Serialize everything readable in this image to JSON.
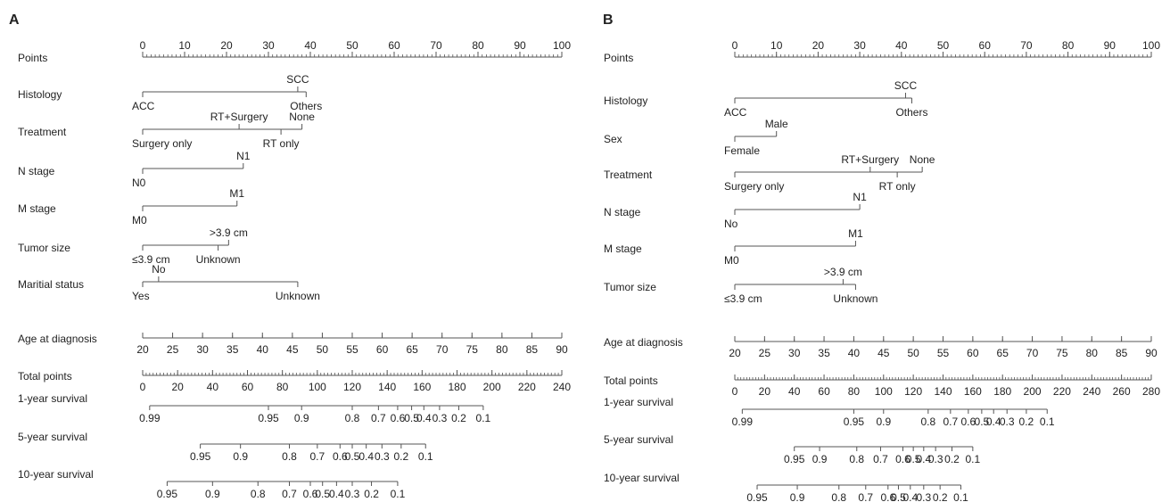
{
  "chart_data": [
    {
      "type": "nomogram",
      "panel": "A",
      "rows": [
        {
          "label": "Points",
          "kind": "axis",
          "min": 0,
          "max": 100,
          "ticks": [
            0,
            10,
            20,
            30,
            40,
            50,
            60,
            70,
            80,
            90,
            100
          ],
          "minor_step": 1
        },
        {
          "label": "Histology",
          "kind": "categorical",
          "categories": [
            {
              "name": "ACC",
              "points": 0,
              "pos": "below"
            },
            {
              "name": "SCC",
              "points": 37,
              "pos": "above"
            },
            {
              "name": "Others",
              "points": 39,
              "pos": "below"
            }
          ]
        },
        {
          "label": "Treatment",
          "kind": "categorical",
          "categories": [
            {
              "name": "Surgery only",
              "points": 0,
              "pos": "below"
            },
            {
              "name": "RT+Surgery",
              "points": 23,
              "pos": "above"
            },
            {
              "name": "RT only",
              "points": 33,
              "pos": "below"
            },
            {
              "name": "None",
              "points": 38,
              "pos": "above"
            }
          ]
        },
        {
          "label": "N stage",
          "kind": "categorical",
          "categories": [
            {
              "name": "N0",
              "points": 0,
              "pos": "below"
            },
            {
              "name": "N1",
              "points": 24,
              "pos": "above"
            }
          ]
        },
        {
          "label": "M stage",
          "kind": "categorical",
          "categories": [
            {
              "name": "M0",
              "points": 0,
              "pos": "below"
            },
            {
              "name": "M1",
              "points": 22.5,
              "pos": "above"
            }
          ]
        },
        {
          "label": "Tumor size",
          "kind": "categorical",
          "categories": [
            {
              "name": "≤3.9 cm",
              "points": 0,
              "pos": "below"
            },
            {
              "name": ">3.9 cm",
              "points": 20.5,
              "pos": "above"
            },
            {
              "name": "Unknown",
              "points": 18,
              "pos": "below"
            }
          ]
        },
        {
          "label": "Maritial status",
          "kind": "categorical",
          "categories": [
            {
              "name": "Yes",
              "points": 0,
              "pos": "below"
            },
            {
              "name": "No",
              "points": 3.8,
              "pos": "above"
            },
            {
              "name": "Unknown",
              "points": 37,
              "pos": "below"
            }
          ]
        },
        {
          "label": "Age at diagnosis",
          "kind": "axis",
          "min": 20,
          "max": 90,
          "ticks": [
            20,
            25,
            30,
            35,
            40,
            45,
            50,
            55,
            60,
            65,
            70,
            75,
            80,
            85,
            90
          ],
          "minor_step": 5
        },
        {
          "label": "Total points",
          "kind": "axis",
          "min": 0,
          "max": 240,
          "ticks": [
            0,
            20,
            40,
            60,
            80,
            100,
            120,
            140,
            160,
            180,
            200,
            220,
            240
          ],
          "minor_step": 2
        },
        {
          "label": "1-year survival",
          "kind": "survival",
          "tick_labels": [
            "0.99",
            "0.95",
            "0.9",
            "0.8",
            "0.7",
            "0.6",
            "0.5",
            "0.4",
            "0.3",
            "0.2",
            "0.1"
          ],
          "total_points": [
            4,
            72,
            91,
            120,
            135,
            146,
            154,
            161,
            170,
            181,
            195
          ]
        },
        {
          "label": "5-year survival",
          "kind": "survival",
          "tick_labels": [
            "0.95",
            "0.9",
            "0.8",
            "0.7",
            "0.6",
            "0.5",
            "0.4",
            "0.3",
            "0.2",
            "0.1"
          ],
          "total_points": [
            33,
            56,
            84,
            100,
            113,
            120,
            128,
            137,
            148,
            162
          ]
        },
        {
          "label": "10-year survival",
          "kind": "survival",
          "tick_labels": [
            "0.95",
            "0.9",
            "0.8",
            "0.7",
            "0.6",
            "0.5",
            "0.4",
            "0.3",
            "0.2",
            "0.1"
          ],
          "total_points": [
            14,
            40,
            66,
            84,
            96,
            103,
            111,
            120,
            131,
            146
          ]
        }
      ]
    },
    {
      "type": "nomogram",
      "panel": "B",
      "rows": [
        {
          "label": "Points",
          "kind": "axis",
          "min": 0,
          "max": 100,
          "ticks": [
            0,
            10,
            20,
            30,
            40,
            50,
            60,
            70,
            80,
            90,
            100
          ],
          "minor_step": 1
        },
        {
          "label": "Histology",
          "kind": "categorical",
          "categories": [
            {
              "name": "ACC",
              "points": 0,
              "pos": "below"
            },
            {
              "name": "SCC",
              "points": 41,
              "pos": "above"
            },
            {
              "name": "Others",
              "points": 42.5,
              "pos": "below"
            }
          ]
        },
        {
          "label": "Sex",
          "kind": "categorical",
          "categories": [
            {
              "name": "Female",
              "points": 0,
              "pos": "below"
            },
            {
              "name": "Male",
              "points": 10,
              "pos": "above"
            }
          ]
        },
        {
          "label": "Treatment",
          "kind": "categorical",
          "categories": [
            {
              "name": "Surgery only",
              "points": 0,
              "pos": "below"
            },
            {
              "name": "RT+Surgery",
              "points": 32.5,
              "pos": "above"
            },
            {
              "name": "RT only",
              "points": 39,
              "pos": "below"
            },
            {
              "name": "None",
              "points": 45,
              "pos": "above"
            }
          ]
        },
        {
          "label": "N stage",
          "kind": "categorical",
          "categories": [
            {
              "name": "No",
              "points": 0,
              "pos": "below"
            },
            {
              "name": "N1",
              "points": 30,
              "pos": "above"
            }
          ]
        },
        {
          "label": "M stage",
          "kind": "categorical",
          "categories": [
            {
              "name": "M0",
              "points": 0,
              "pos": "below"
            },
            {
              "name": "M1",
              "points": 29,
              "pos": "above"
            }
          ]
        },
        {
          "label": "Tumor size",
          "kind": "categorical",
          "categories": [
            {
              "name": "≤3.9 cm",
              "points": 0,
              "pos": "below"
            },
            {
              "name": ">3.9 cm",
              "points": 26,
              "pos": "above"
            },
            {
              "name": "Unknown",
              "points": 29,
              "pos": "below"
            }
          ]
        },
        {
          "label": "Age at diagnosis",
          "kind": "axis",
          "min": 20,
          "max": 90,
          "ticks": [
            20,
            25,
            30,
            35,
            40,
            45,
            50,
            55,
            60,
            65,
            70,
            75,
            80,
            85,
            90
          ],
          "minor_step": 5
        },
        {
          "label": "Total points",
          "kind": "axis",
          "min": 0,
          "max": 280,
          "ticks": [
            0,
            20,
            40,
            60,
            80,
            100,
            120,
            140,
            160,
            180,
            200,
            220,
            240,
            260,
            280
          ],
          "minor_step": 2
        },
        {
          "label": "1-year survival",
          "kind": "survival",
          "tick_labels": [
            "0.99",
            "0.95",
            "0.9",
            "0.8",
            "0.7",
            "0.6",
            "0.5",
            "0.4",
            "0.3",
            "0.2",
            "0.1"
          ],
          "total_points": [
            5,
            80,
            100,
            130,
            145,
            157,
            166,
            174,
            183,
            196,
            210
          ]
        },
        {
          "label": "5-year survival",
          "kind": "survival",
          "tick_labels": [
            "0.95",
            "0.9",
            "0.8",
            "0.7",
            "0.6",
            "0.5",
            "0.4",
            "0.3",
            "0.2",
            "0.1"
          ],
          "total_points": [
            40,
            57,
            82,
            98,
            113,
            120,
            127,
            135,
            146,
            160
          ]
        },
        {
          "label": "10-year survival",
          "kind": "survival",
          "tick_labels": [
            "0.95",
            "0.9",
            "0.8",
            "0.7",
            "0.6",
            "0.5",
            "0.4",
            "0.3",
            "0.2",
            "0.1"
          ],
          "total_points": [
            15,
            42,
            70,
            88,
            103,
            110,
            118,
            127,
            138,
            152
          ]
        }
      ]
    }
  ]
}
